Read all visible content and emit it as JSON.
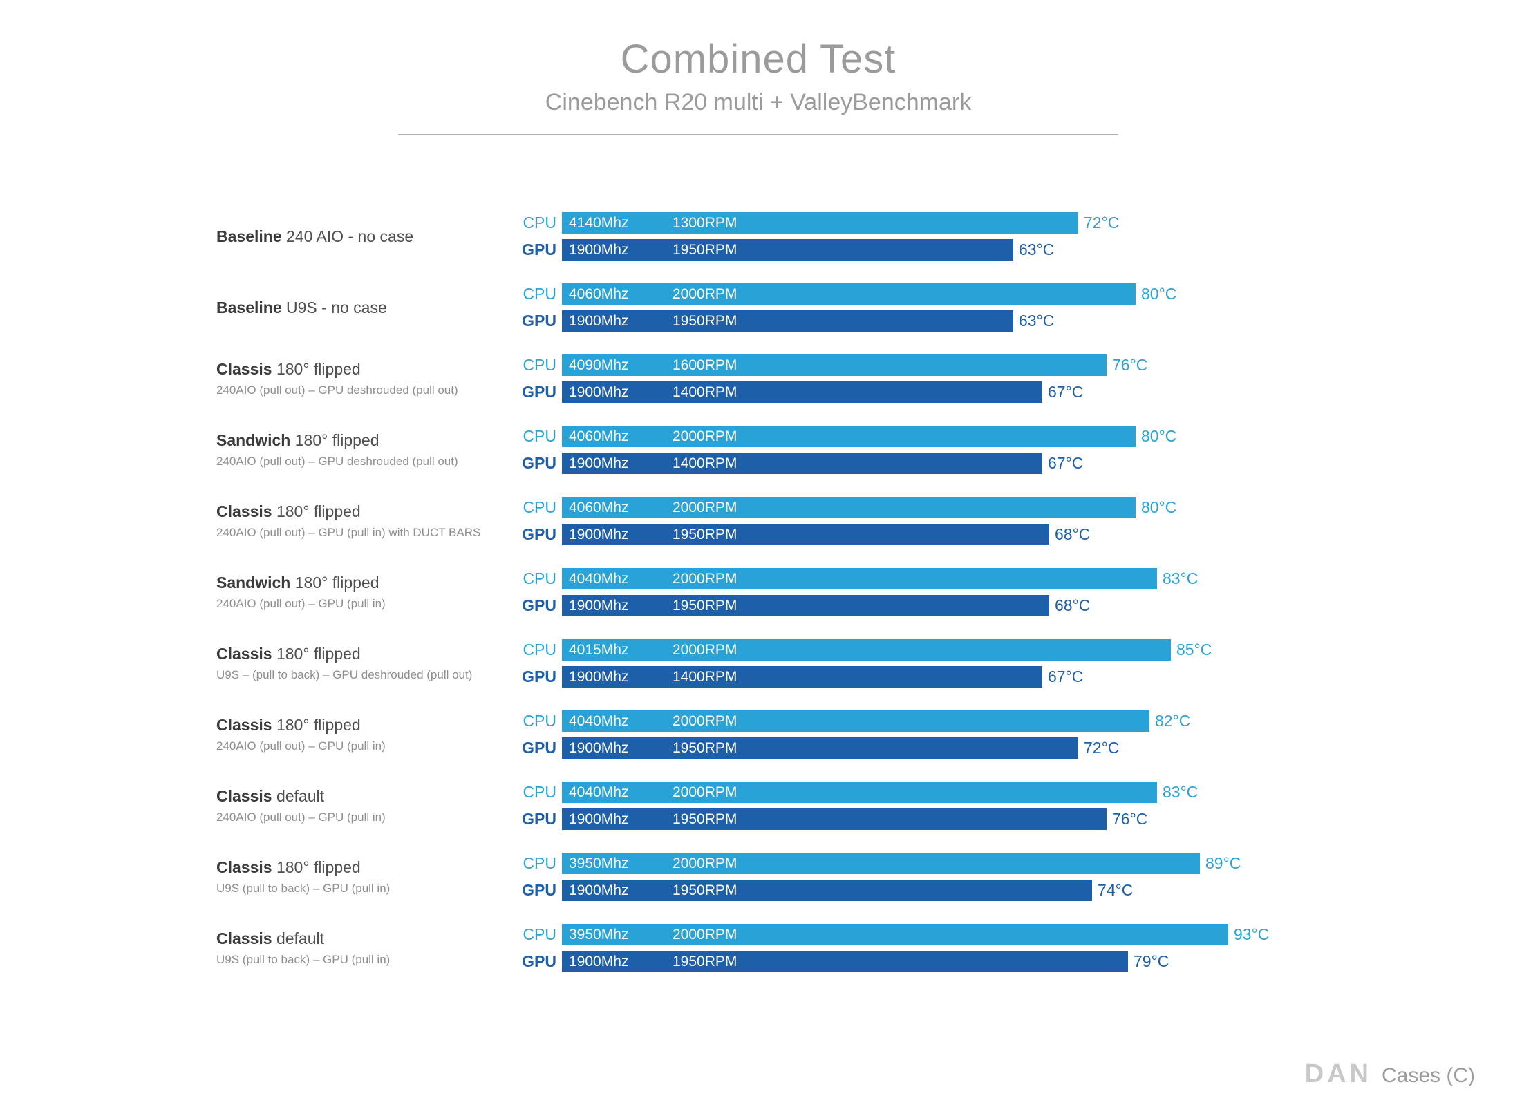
{
  "header": {
    "title": "Combined Test",
    "subtitle": "Cinebench R20 multi + ValleyBenchmark"
  },
  "labels": {
    "cpu_tag": "CPU",
    "gpu_tag": "GPU"
  },
  "colors": {
    "cpu_bar": "#29A3D7",
    "gpu_bar": "#1D5FA8",
    "title_gray": "#9B9B9B",
    "bar_text": "#FFFFFF"
  },
  "footer": {
    "logo_text": "DAN",
    "brand_text": "Cases (C)"
  },
  "chart_data": {
    "type": "bar",
    "orientation": "horizontal",
    "title": "Combined Test",
    "subtitle": "Cinebench R20 multi + ValleyBenchmark",
    "unit": "°C",
    "value_axis_min": 0,
    "value_axis_max": 93,
    "grid": false,
    "legend": [
      "CPU",
      "GPU"
    ],
    "series": [
      {
        "name": "CPU Temperature (°C)",
        "values": [
          72,
          80,
          76,
          80,
          80,
          83,
          85,
          82,
          83,
          89,
          93
        ]
      },
      {
        "name": "GPU Temperature (°C)",
        "values": [
          63,
          63,
          67,
          67,
          68,
          68,
          67,
          72,
          76,
          74,
          79
        ]
      }
    ],
    "groups": [
      {
        "label_bold": "Baseline",
        "label_rest": "240 AIO - no case",
        "sublabel": "",
        "cpu": {
          "mhz": "4140Mhz",
          "rpm": "1300RPM",
          "temp": 72,
          "temp_label": "72°C"
        },
        "gpu": {
          "mhz": "1900Mhz",
          "rpm": "1950RPM",
          "temp": 63,
          "temp_label": "63°C"
        }
      },
      {
        "label_bold": "Baseline",
        "label_rest": "U9S - no case",
        "sublabel": "",
        "cpu": {
          "mhz": "4060Mhz",
          "rpm": "2000RPM",
          "temp": 80,
          "temp_label": "80°C"
        },
        "gpu": {
          "mhz": "1900Mhz",
          "rpm": "1950RPM",
          "temp": 63,
          "temp_label": "63°C"
        }
      },
      {
        "label_bold": "Classis",
        "label_rest": "180° flipped",
        "sublabel": "240AIO (pull out) – GPU deshrouded (pull out)",
        "cpu": {
          "mhz": "4090Mhz",
          "rpm": "1600RPM",
          "temp": 76,
          "temp_label": "76°C"
        },
        "gpu": {
          "mhz": "1900Mhz",
          "rpm": "1400RPM",
          "temp": 67,
          "temp_label": "67°C"
        }
      },
      {
        "label_bold": "Sandwich",
        "label_rest": "180° flipped",
        "sublabel": "240AIO (pull out) – GPU deshrouded (pull out)",
        "cpu": {
          "mhz": "4060Mhz",
          "rpm": "2000RPM",
          "temp": 80,
          "temp_label": "80°C"
        },
        "gpu": {
          "mhz": "1900Mhz",
          "rpm": "1400RPM",
          "temp": 67,
          "temp_label": "67°C"
        }
      },
      {
        "label_bold": "Classis",
        "label_rest": "180° flipped",
        "sublabel": "240AIO (pull out) – GPU (pull in) with DUCT BARS",
        "cpu": {
          "mhz": "4060Mhz",
          "rpm": "2000RPM",
          "temp": 80,
          "temp_label": "80°C"
        },
        "gpu": {
          "mhz": "1900Mhz",
          "rpm": "1950RPM",
          "temp": 68,
          "temp_label": "68°C"
        }
      },
      {
        "label_bold": "Sandwich",
        "label_rest": "180° flipped",
        "sublabel": "240AIO (pull out) – GPU (pull in)",
        "cpu": {
          "mhz": "4040Mhz",
          "rpm": "2000RPM",
          "temp": 83,
          "temp_label": "83°C"
        },
        "gpu": {
          "mhz": "1900Mhz",
          "rpm": "1950RPM",
          "temp": 68,
          "temp_label": "68°C"
        }
      },
      {
        "label_bold": "Classis",
        "label_rest": "180° flipped",
        "sublabel": "U9S – (pull to back) – GPU deshrouded (pull out)",
        "cpu": {
          "mhz": "4015Mhz",
          "rpm": "2000RPM",
          "temp": 85,
          "temp_label": "85°C"
        },
        "gpu": {
          "mhz": "1900Mhz",
          "rpm": "1400RPM",
          "temp": 67,
          "temp_label": "67°C"
        }
      },
      {
        "label_bold": "Classis",
        "label_rest": "180° flipped",
        "sublabel": "240AIO (pull out) – GPU (pull in)",
        "cpu": {
          "mhz": "4040Mhz",
          "rpm": "2000RPM",
          "temp": 82,
          "temp_label": "82°C"
        },
        "gpu": {
          "mhz": "1900Mhz",
          "rpm": "1950RPM",
          "temp": 72,
          "temp_label": "72°C"
        }
      },
      {
        "label_bold": "Classis",
        "label_rest": "default",
        "sublabel": "240AIO (pull out) – GPU (pull in)",
        "cpu": {
          "mhz": "4040Mhz",
          "rpm": "2000RPM",
          "temp": 83,
          "temp_label": "83°C"
        },
        "gpu": {
          "mhz": "1900Mhz",
          "rpm": "1950RPM",
          "temp": 76,
          "temp_label": "76°C"
        }
      },
      {
        "label_bold": "Classis",
        "label_rest": "180° flipped",
        "sublabel": "U9S (pull to back) – GPU (pull in)",
        "cpu": {
          "mhz": "3950Mhz",
          "rpm": "2000RPM",
          "temp": 89,
          "temp_label": "89°C"
        },
        "gpu": {
          "mhz": "1900Mhz",
          "rpm": "1950RPM",
          "temp": 74,
          "temp_label": "74°C"
        }
      },
      {
        "label_bold": "Classis",
        "label_rest": "default",
        "sublabel": "U9S (pull to back) – GPU (pull in)",
        "cpu": {
          "mhz": "3950Mhz",
          "rpm": "2000RPM",
          "temp": 93,
          "temp_label": "93°C"
        },
        "gpu": {
          "mhz": "1900Mhz",
          "rpm": "1950RPM",
          "temp": 79,
          "temp_label": "79°C"
        }
      }
    ]
  }
}
